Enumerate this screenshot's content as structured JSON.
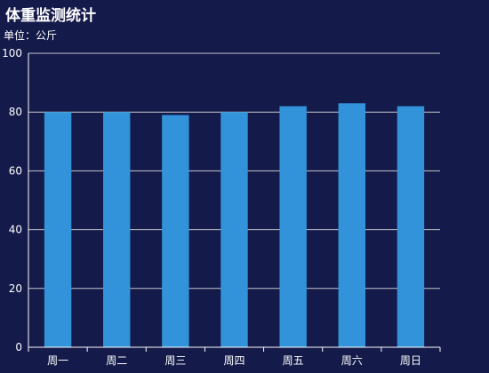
{
  "title": "体重监测统计",
  "subtitle": "单位：公斤",
  "chart_data": {
    "type": "bar",
    "categories": [
      "周一",
      "周二",
      "周三",
      "周四",
      "周五",
      "周六",
      "周日"
    ],
    "series": [
      {
        "values": [
          80,
          80,
          79,
          80,
          82,
          83,
          82
        ]
      }
    ],
    "ylim": [
      0,
      100
    ],
    "yticks": [
      0,
      20,
      40,
      60,
      80,
      100
    ],
    "grid": true,
    "colors": {
      "bar": "#3293da",
      "background": "#141a4a",
      "grid": "#e6e6e6",
      "text": "#ffffff"
    }
  }
}
